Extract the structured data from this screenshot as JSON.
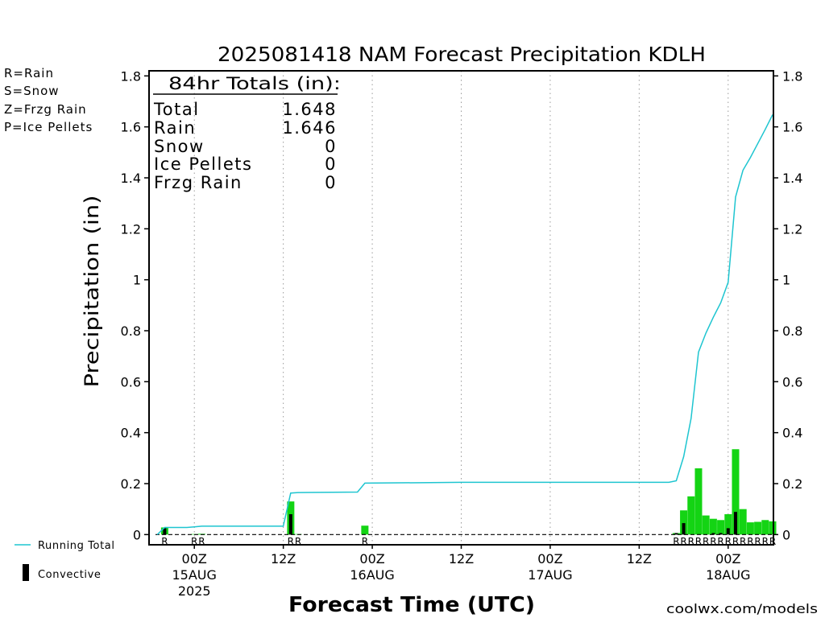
{
  "type_key": [
    {
      "label": "R=Rain",
      "color": "#21d321"
    },
    {
      "label": "S=Snow",
      "color": "#3a4cf5"
    },
    {
      "label": "Z=Frzg Rain",
      "color": "#e88a36"
    },
    {
      "label": "P=Ice Pellets",
      "color": "#e8249a"
    }
  ],
  "totals": {
    "heading": "84hr Totals (in):",
    "rows": [
      {
        "label": "Total",
        "value": "1.648"
      },
      {
        "label": "Rain",
        "value": "1.646"
      },
      {
        "label": "Snow",
        "value": "0"
      },
      {
        "label": "Ice Pellets",
        "value": "0"
      },
      {
        "label": "Frzg Rain",
        "value": "0"
      }
    ]
  },
  "credit": "coolwx.com/models",
  "credit_color": "#e03030",
  "chart_data": {
    "type": "bar",
    "title": "2025081418 NAM Forecast Precipitation KDLH",
    "xlabel": "Forecast Time (UTC)",
    "ylabel": "Precipitation (in)",
    "xlim": [
      "14AUG 18Z",
      "18AUG 06Z"
    ],
    "ylim": [
      -0.04,
      1.82
    ],
    "yticks": [
      "0",
      "0.2",
      "0.4",
      "0.6",
      "0.8",
      "1",
      "1.2",
      "1.4",
      "1.6",
      "1.8"
    ],
    "xticks": [
      {
        "t": "15AUG 00Z",
        "label": "00Z",
        "day": "15AUG",
        "year": "2025"
      },
      {
        "t": "15AUG 12Z",
        "label": "12Z"
      },
      {
        "t": "16AUG 00Z",
        "label": "00Z",
        "day": "16AUG"
      },
      {
        "t": "16AUG 12Z",
        "label": "12Z"
      },
      {
        "t": "17AUG 00Z",
        "label": "00Z",
        "day": "17AUG"
      },
      {
        "t": "17AUG 12Z",
        "label": "12Z"
      },
      {
        "t": "18AUG 00Z",
        "label": "00Z",
        "day": "18AUG"
      }
    ],
    "grid": true,
    "legend_placement": "left",
    "series": [
      {
        "color": "#14d414",
        "points": [
          {
            "t": "14AUG 20Z",
            "v": 0.028,
            "type": "R"
          },
          {
            "t": "15AUG 00Z",
            "v": 0.002,
            "type": "R"
          },
          {
            "t": "15AUG 01Z",
            "v": 0.003,
            "type": "R"
          },
          {
            "t": "15AUG 13Z",
            "v": 0.13,
            "type": "R"
          },
          {
            "t": "15AUG 14Z",
            "v": 0.002,
            "type": "R"
          },
          {
            "t": "15AUG 23Z",
            "v": 0.035,
            "type": "R"
          },
          {
            "t": "17AUG 17Z",
            "v": 0.006,
            "type": "R"
          },
          {
            "t": "17AUG 18Z",
            "v": 0.095,
            "type": "R"
          },
          {
            "t": "17AUG 19Z",
            "v": 0.15,
            "type": "R"
          },
          {
            "t": "17AUG 20Z",
            "v": 0.26,
            "type": "R"
          },
          {
            "t": "17AUG 21Z",
            "v": 0.075,
            "type": "R"
          },
          {
            "t": "17AUG 22Z",
            "v": 0.062,
            "type": "R"
          },
          {
            "t": "17AUG 23Z",
            "v": 0.057,
            "type": "R"
          },
          {
            "t": "18AUG 00Z",
            "v": 0.08,
            "type": "R"
          },
          {
            "t": "18AUG 01Z",
            "v": 0.335,
            "type": "R"
          },
          {
            "t": "18AUG 02Z",
            "v": 0.1,
            "type": "R"
          },
          {
            "t": "18AUG 03Z",
            "v": 0.048,
            "type": "R"
          },
          {
            "t": "18AUG 04Z",
            "v": 0.05,
            "type": "R"
          },
          {
            "t": "18AUG 05Z",
            "v": 0.057,
            "type": "R"
          },
          {
            "t": "18AUG 06Z",
            "v": 0.052,
            "type": "R"
          }
        ]
      },
      {
        "name": "Convective",
        "color": "#000000",
        "points": [
          {
            "t": "14AUG 20Z",
            "v": 0.025
          },
          {
            "t": "15AUG 13Z",
            "v": 0.08
          },
          {
            "t": "17AUG 17Z",
            "v": 0.006
          },
          {
            "t": "17AUG 18Z",
            "v": 0.045
          },
          {
            "t": "17AUG 22Z",
            "v": 0.006
          },
          {
            "t": "17AUG 23Z",
            "v": 0.006
          },
          {
            "t": "18AUG 00Z",
            "v": 0.025
          },
          {
            "t": "18AUG 01Z",
            "v": 0.089
          }
        ]
      },
      {
        "name": "Running Total",
        "color": "#1ec5d0",
        "points": [
          {
            "t": "14AUG 19Z",
            "v": 0.0
          },
          {
            "t": "14AUG 20Z",
            "v": 0.028
          },
          {
            "t": "14AUG 23Z",
            "v": 0.028
          },
          {
            "t": "15AUG 00Z",
            "v": 0.03
          },
          {
            "t": "15AUG 01Z",
            "v": 0.033
          },
          {
            "t": "15AUG 12Z",
            "v": 0.033
          },
          {
            "t": "15AUG 13Z",
            "v": 0.163
          },
          {
            "t": "15AUG 14Z",
            "v": 0.165
          },
          {
            "t": "15AUG 22Z",
            "v": 0.167
          },
          {
            "t": "15AUG 23Z",
            "v": 0.202
          },
          {
            "t": "16AUG 12Z",
            "v": 0.205
          },
          {
            "t": "17AUG 16Z",
            "v": 0.205
          },
          {
            "t": "17AUG 17Z",
            "v": 0.211
          },
          {
            "t": "17AUG 18Z",
            "v": 0.306
          },
          {
            "t": "17AUG 19Z",
            "v": 0.456
          },
          {
            "t": "17AUG 20Z",
            "v": 0.716
          },
          {
            "t": "17AUG 21Z",
            "v": 0.791
          },
          {
            "t": "17AUG 22Z",
            "v": 0.853
          },
          {
            "t": "17AUG 23Z",
            "v": 0.91
          },
          {
            "t": "18AUG 00Z",
            "v": 0.99
          },
          {
            "t": "18AUG 01Z",
            "v": 1.325
          },
          {
            "t": "18AUG 02Z",
            "v": 1.43
          },
          {
            "t": "18AUG 03Z",
            "v": 1.48
          },
          {
            "t": "18AUG 04Z",
            "v": 1.535
          },
          {
            "t": "18AUG 05Z",
            "v": 1.59
          },
          {
            "t": "18AUG 06Z",
            "v": 1.648
          }
        ]
      }
    ]
  }
}
